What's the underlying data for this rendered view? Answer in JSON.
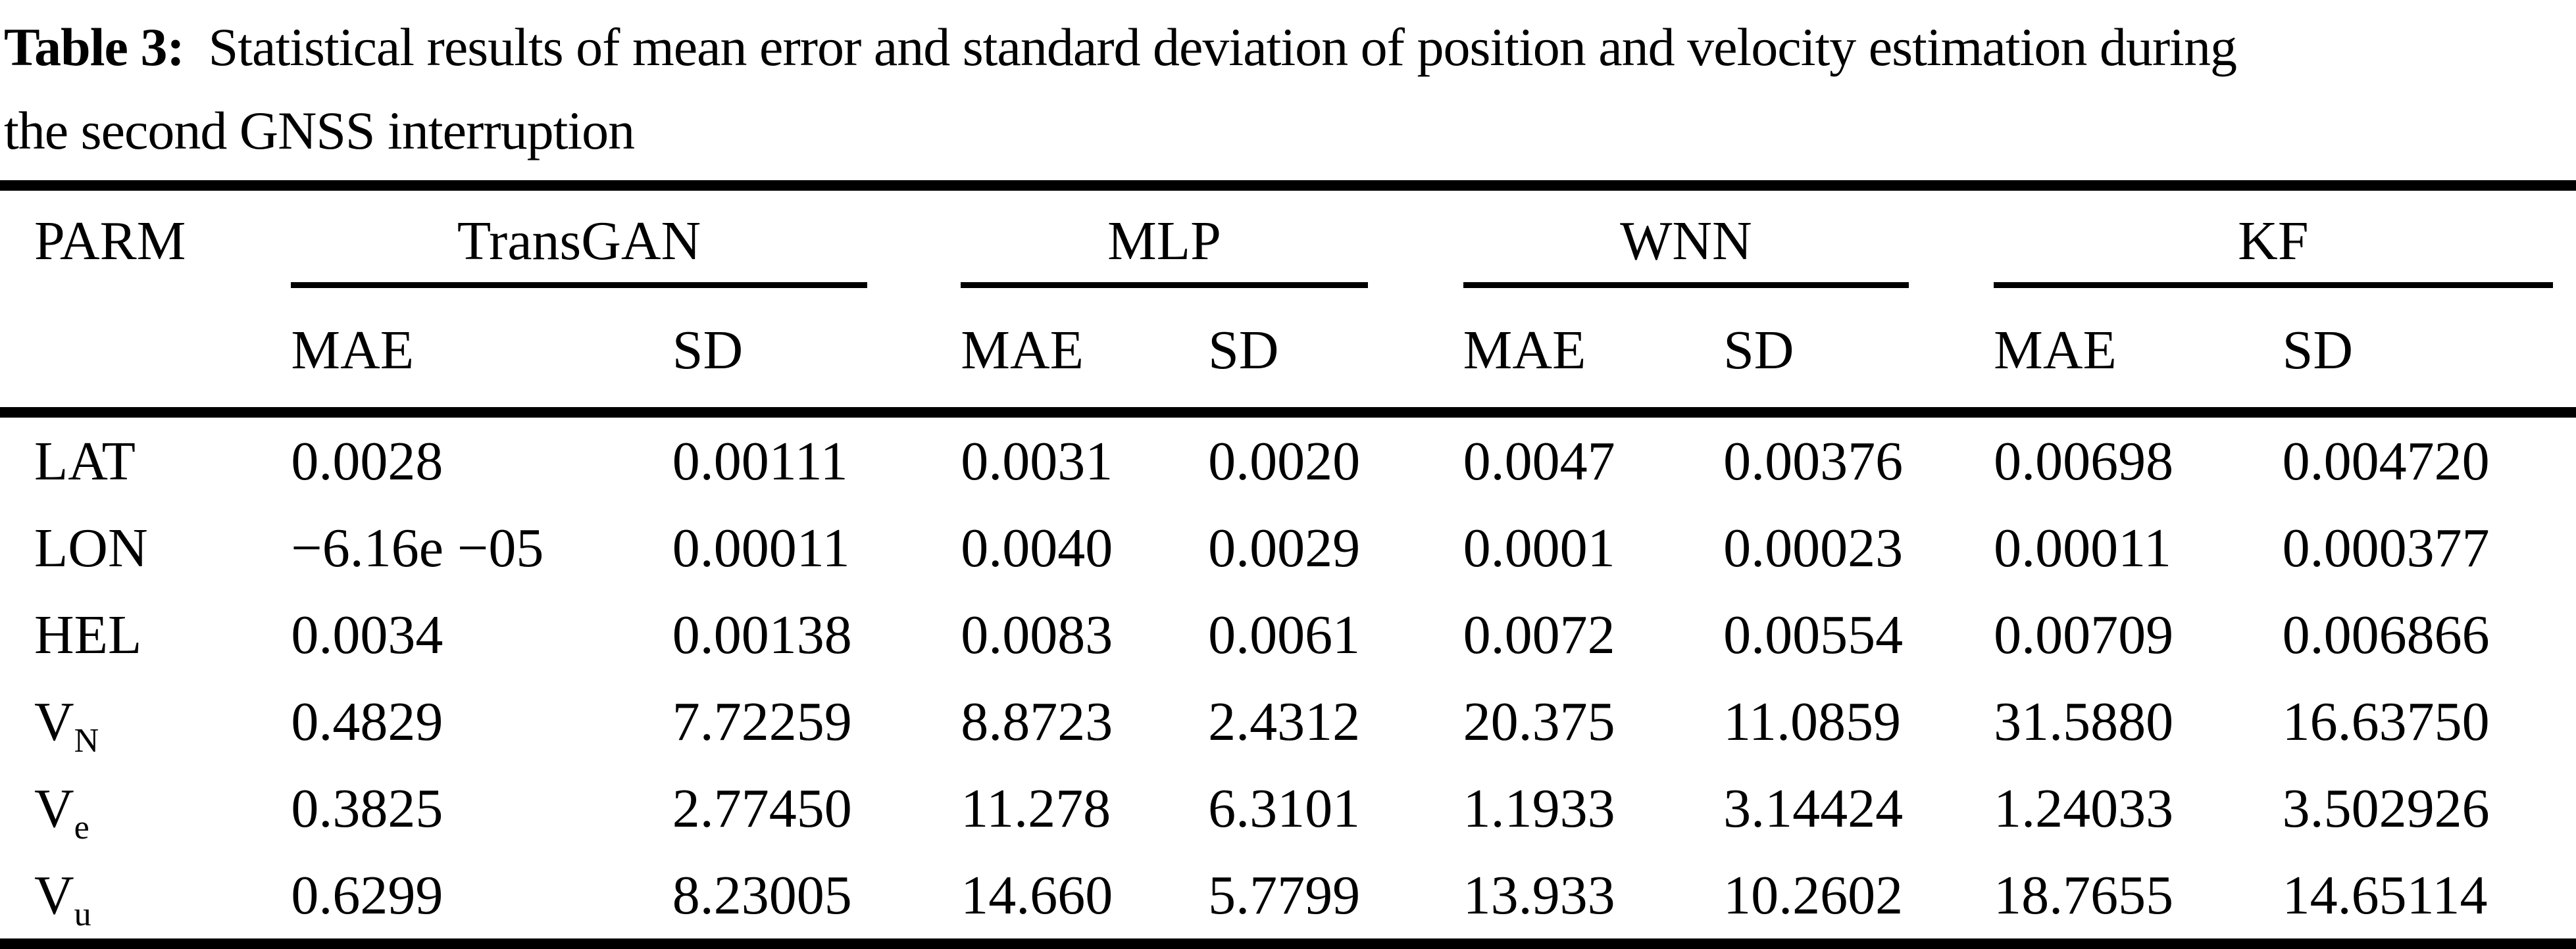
{
  "caption": {
    "label": "Table 3:",
    "line1": "Statistical results of mean error and standard deviation of position and velocity estimation during",
    "line2": "the second GNSS interruption"
  },
  "table": {
    "param_header": "PARM",
    "groups": [
      {
        "name": "TransGAN",
        "subcols": [
          "MAE",
          "SD"
        ]
      },
      {
        "name": "MLP",
        "subcols": [
          "MAE",
          "SD"
        ]
      },
      {
        "name": "WNN",
        "subcols": [
          "MAE",
          "SD"
        ]
      },
      {
        "name": "KF",
        "subcols": [
          "MAE",
          "SD"
        ]
      }
    ],
    "rows": [
      {
        "param": "LAT",
        "sub": "",
        "values": [
          "0.0028",
          "0.00111",
          "0.0031",
          "0.0020",
          "0.0047",
          "0.00376",
          "0.00698",
          "0.004720"
        ]
      },
      {
        "param": "LON",
        "sub": "",
        "values": [
          "−6.16e −05",
          "0.00011",
          "0.0040",
          "0.0029",
          "0.0001",
          "0.00023",
          "0.00011",
          "0.000377"
        ]
      },
      {
        "param": "HEL",
        "sub": "",
        "values": [
          "0.0034",
          "0.00138",
          "0.0083",
          "0.0061",
          "0.0072",
          "0.00554",
          "0.00709",
          "0.006866"
        ]
      },
      {
        "param": "V",
        "sub": "N",
        "values": [
          "0.4829",
          "7.72259",
          "8.8723",
          "2.4312",
          "20.375",
          "11.0859",
          "31.5880",
          "16.63750"
        ]
      },
      {
        "param": "V",
        "sub": "e",
        "values": [
          "0.3825",
          "2.77450",
          "11.278",
          "6.3101",
          "1.1933",
          "3.14424",
          "1.24033",
          "3.502926"
        ]
      },
      {
        "param": "V",
        "sub": "u",
        "values": [
          "0.6299",
          "8.23005",
          "14.660",
          "5.7799",
          "13.933",
          "10.2602",
          "18.7655",
          "14.65114"
        ]
      }
    ]
  },
  "colors": {
    "text": "#000000",
    "background": "#ffffff",
    "rule": "#000000"
  }
}
